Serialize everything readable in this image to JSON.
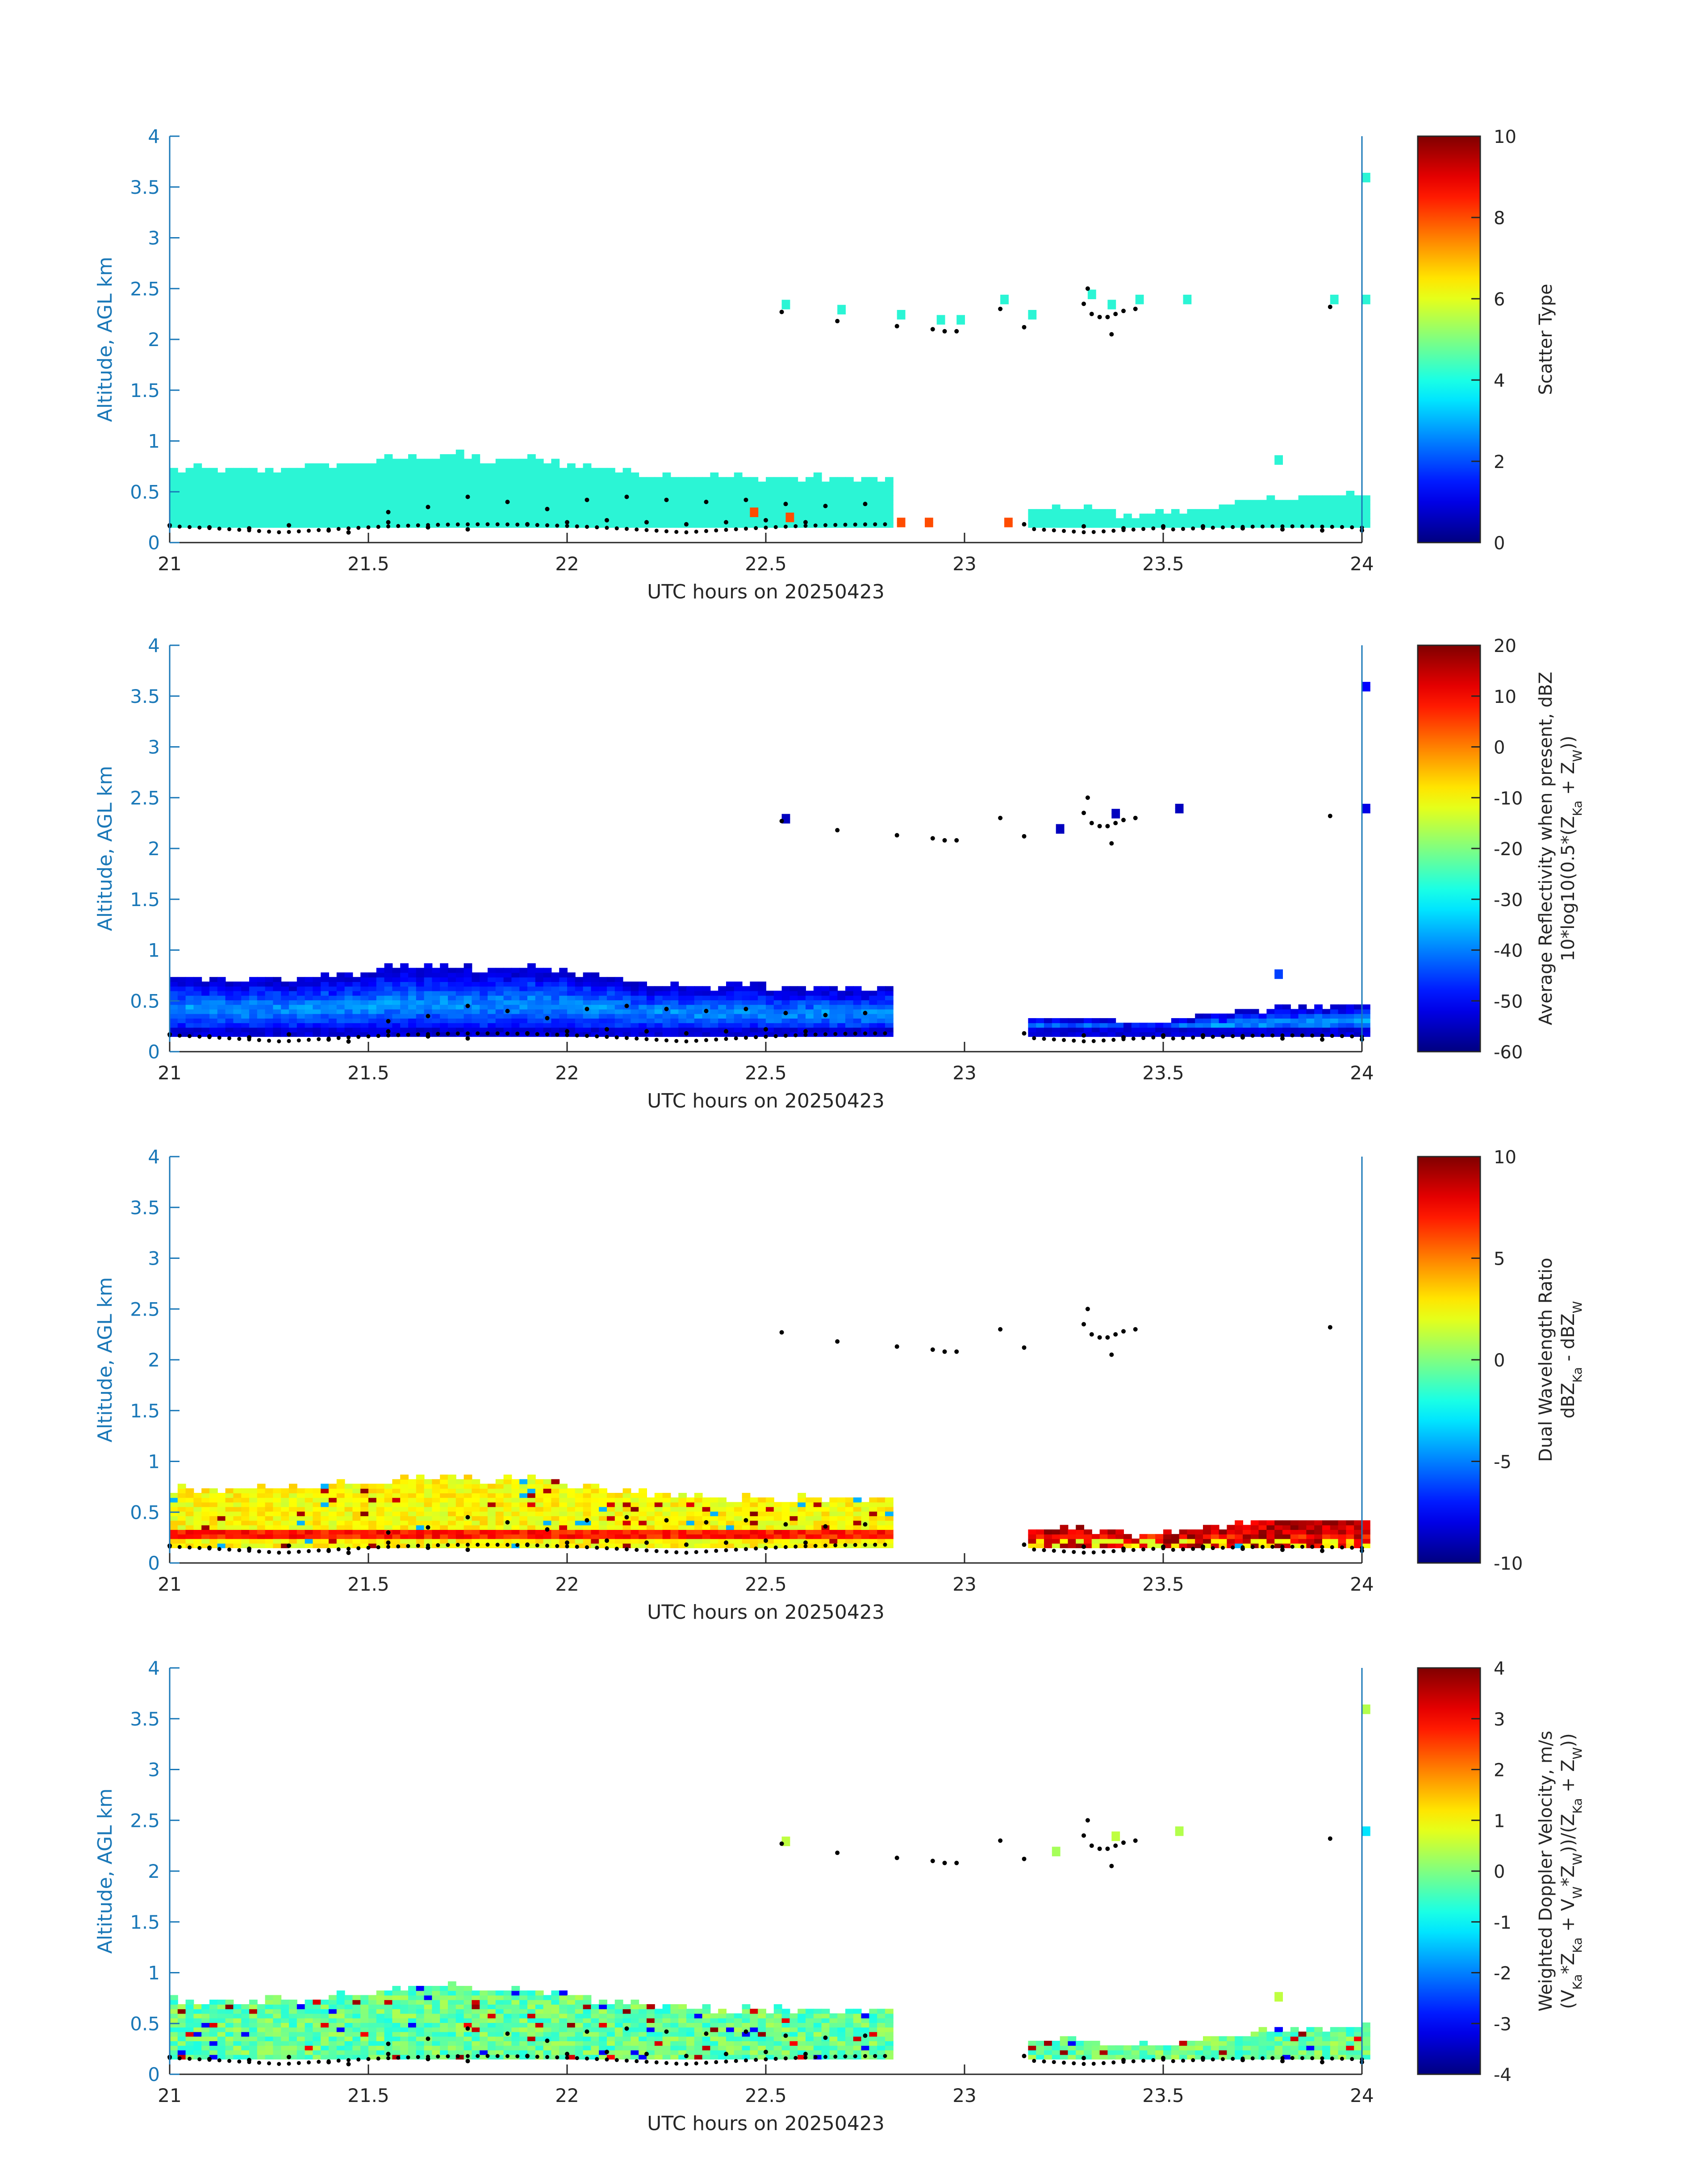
{
  "chart_data": [
    {
      "type": "heatmap",
      "title": "",
      "xlabel": "UTC hours on 20250423",
      "ylabel": "Altitude, AGL km",
      "xlim": [
        21,
        24
      ],
      "ylim": [
        0,
        4
      ],
      "xticks": [
        "21",
        "21.5",
        "22",
        "22.5",
        "23",
        "23.5",
        "24"
      ],
      "yticks": [
        "0",
        "0.5",
        "1",
        "1.5",
        "2",
        "2.5",
        "3",
        "3.5",
        "4"
      ],
      "colorbar": {
        "label_lines": [
          "Scatter Type"
        ],
        "range": [
          0,
          10
        ],
        "ticks": [
          "0",
          "2",
          "4",
          "6",
          "8",
          "10"
        ]
      },
      "fields": {
        "background_value": 4,
        "background_color": "#2bf5d5",
        "bottom_ends": [
          [
            21.0,
            0.7
          ],
          [
            21.3,
            0.7
          ],
          [
            21.7,
            0.85
          ],
          [
            22.0,
            0.75
          ],
          [
            22.3,
            0.65
          ],
          [
            22.8,
            0.6
          ]
        ],
        "gap_ranges": [
          [
            22.8,
            23.15
          ]
        ],
        "right_ends": [
          [
            23.15,
            0.3
          ],
          [
            23.5,
            0.3
          ],
          [
            23.8,
            0.45
          ],
          [
            24.0,
            0.4
          ]
        ],
        "accent_spots": [
          [
            22.46,
            0.3,
            8
          ],
          [
            22.55,
            0.25,
            8
          ],
          [
            22.83,
            0.2,
            8
          ],
          [
            22.9,
            0.2,
            8
          ],
          [
            23.1,
            0.2,
            8
          ]
        ],
        "upper_patches": [
          [
            22.54,
            2.3
          ],
          [
            22.68,
            2.25
          ],
          [
            22.83,
            2.2
          ],
          [
            22.93,
            2.15
          ],
          [
            22.98,
            2.15
          ],
          [
            23.09,
            2.35
          ],
          [
            23.16,
            2.2
          ],
          [
            23.31,
            2.4
          ],
          [
            23.36,
            2.3
          ],
          [
            23.43,
            2.35
          ],
          [
            23.55,
            2.35
          ],
          [
            23.92,
            2.35
          ],
          [
            24.0,
            2.35
          ],
          [
            24.0,
            3.55
          ],
          [
            23.78,
            0.77
          ]
        ]
      }
    },
    {
      "type": "heatmap",
      "title": "",
      "xlabel": "UTC hours on 20250423",
      "ylabel": "Altitude, AGL km",
      "xlim": [
        21,
        24
      ],
      "ylim": [
        0,
        4
      ],
      "xticks": [
        "21",
        "21.5",
        "22",
        "22.5",
        "23",
        "23.5",
        "24"
      ],
      "yticks": [
        "0",
        "0.5",
        "1",
        "1.5",
        "2",
        "2.5",
        "3",
        "3.5",
        "4"
      ],
      "colorbar": {
        "label_lines": [
          "Average Reflectivity when present, dBZ",
          "10*log10(0.5*(Z",
          "Ka",
          " + Z",
          "W",
          "))"
        ],
        "range": [
          -60,
          20
        ],
        "ticks": [
          "-60",
          "-50",
          "-40",
          "-30",
          "-20",
          "-10",
          "0",
          "10",
          "20"
        ]
      },
      "fields": {
        "value_range": [
          -55,
          -35
        ],
        "upper_patches": [
          [
            22.54,
            2.25,
            -55
          ],
          [
            23.23,
            2.15,
            -55
          ],
          [
            23.37,
            2.3,
            -55
          ],
          [
            23.53,
            2.35,
            -55
          ],
          [
            24.0,
            2.35,
            -52
          ],
          [
            24.0,
            3.55,
            -50
          ],
          [
            23.78,
            0.72,
            -45
          ]
        ]
      }
    },
    {
      "type": "heatmap",
      "title": "",
      "xlabel": "UTC hours on 20250423",
      "ylabel": "Altitude, AGL km",
      "xlim": [
        21,
        24
      ],
      "ylim": [
        0,
        4
      ],
      "xticks": [
        "21",
        "21.5",
        "22",
        "22.5",
        "23",
        "23.5",
        "24"
      ],
      "yticks": [
        "0",
        "0.5",
        "1",
        "1.5",
        "2",
        "2.5",
        "3",
        "3.5",
        "4"
      ],
      "colorbar": {
        "label_lines": [
          "Dual Wavelength Ratio",
          "dBZ",
          "Ka",
          " - dBZ",
          "W"
        ],
        "range": [
          -10,
          10
        ],
        "ticks": [
          "-10",
          "-5",
          "0",
          "5",
          "10"
        ]
      },
      "fields": {
        "value_range": [
          1,
          3.5
        ],
        "bright_band_value": 7
      }
    },
    {
      "type": "heatmap",
      "title": "",
      "xlabel": "UTC hours on 20250423",
      "ylabel": "Altitude, AGL km",
      "xlim": [
        21,
        24
      ],
      "ylim": [
        0,
        4
      ],
      "xticks": [
        "21",
        "21.5",
        "22",
        "22.5",
        "23",
        "23.5",
        "24"
      ],
      "yticks": [
        "0",
        "0.5",
        "1",
        "1.5",
        "2",
        "2.5",
        "3",
        "3.5",
        "4"
      ],
      "colorbar": {
        "label_lines": [
          "Weighted Doppler Velocity, m/s",
          "(V",
          "Ka",
          "*Z",
          "Ka",
          " + V",
          "W",
          "*Z",
          "W",
          "))/(Z",
          "Ka",
          " + Z",
          "W",
          "))"
        ],
        "range": [
          -4,
          4
        ],
        "ticks": [
          "-4",
          "-3",
          "-2",
          "-1",
          "0",
          "1",
          "2",
          "3",
          "4"
        ]
      },
      "fields": {
        "value_range": [
          -0.6,
          0.8
        ],
        "upper_patches": [
          [
            22.54,
            2.25,
            0.5
          ],
          [
            23.22,
            2.15,
            0.3
          ],
          [
            23.37,
            2.3,
            0.5
          ],
          [
            23.53,
            2.35,
            0.4
          ],
          [
            24.0,
            2.35,
            -1.2
          ],
          [
            24.0,
            3.55,
            0.4
          ],
          [
            23.78,
            0.72,
            0.5
          ]
        ]
      }
    }
  ],
  "shared": {
    "base_echo_dots": [
      [
        21.0,
        0.17
      ],
      [
        21.1,
        0.15
      ],
      [
        21.2,
        0.14
      ],
      [
        21.3,
        0.17
      ],
      [
        21.4,
        0.12
      ],
      [
        21.45,
        0.1
      ],
      [
        21.55,
        0.2
      ],
      [
        21.65,
        0.15
      ],
      [
        21.75,
        0.13
      ],
      [
        21.9,
        0.18
      ],
      [
        22.0,
        0.2
      ],
      [
        22.1,
        0.22
      ],
      [
        22.2,
        0.2
      ],
      [
        22.3,
        0.18
      ],
      [
        22.4,
        0.2
      ],
      [
        22.5,
        0.22
      ],
      [
        22.6,
        0.2
      ],
      [
        23.15,
        0.18
      ],
      [
        23.3,
        0.16
      ],
      [
        23.4,
        0.14
      ],
      [
        23.5,
        0.16
      ],
      [
        23.6,
        0.16
      ],
      [
        23.7,
        0.14
      ],
      [
        23.8,
        0.13
      ],
      [
        23.9,
        0.12
      ],
      [
        24.0,
        0.12
      ]
    ],
    "cloud_top_dots": [
      [
        21.55,
        0.3
      ],
      [
        21.65,
        0.35
      ],
      [
        21.75,
        0.45
      ],
      [
        21.85,
        0.4
      ],
      [
        21.95,
        0.33
      ],
      [
        22.05,
        0.42
      ],
      [
        22.15,
        0.45
      ],
      [
        22.25,
        0.42
      ],
      [
        22.35,
        0.4
      ],
      [
        22.45,
        0.42
      ],
      [
        22.55,
        0.38
      ],
      [
        22.65,
        0.36
      ],
      [
        22.75,
        0.38
      ]
    ],
    "upper_dots": [
      [
        22.54,
        2.27
      ],
      [
        22.68,
        2.18
      ],
      [
        22.83,
        2.13
      ],
      [
        22.92,
        2.1
      ],
      [
        22.95,
        2.08
      ],
      [
        22.98,
        2.08
      ],
      [
        23.09,
        2.3
      ],
      [
        23.15,
        2.12
      ],
      [
        23.3,
        2.35
      ],
      [
        23.31,
        2.5
      ],
      [
        23.32,
        2.25
      ],
      [
        23.34,
        2.22
      ],
      [
        23.36,
        2.22
      ],
      [
        23.38,
        2.25
      ],
      [
        23.37,
        2.05
      ],
      [
        23.4,
        2.28
      ],
      [
        23.43,
        2.3
      ],
      [
        23.92,
        2.32
      ]
    ]
  }
}
